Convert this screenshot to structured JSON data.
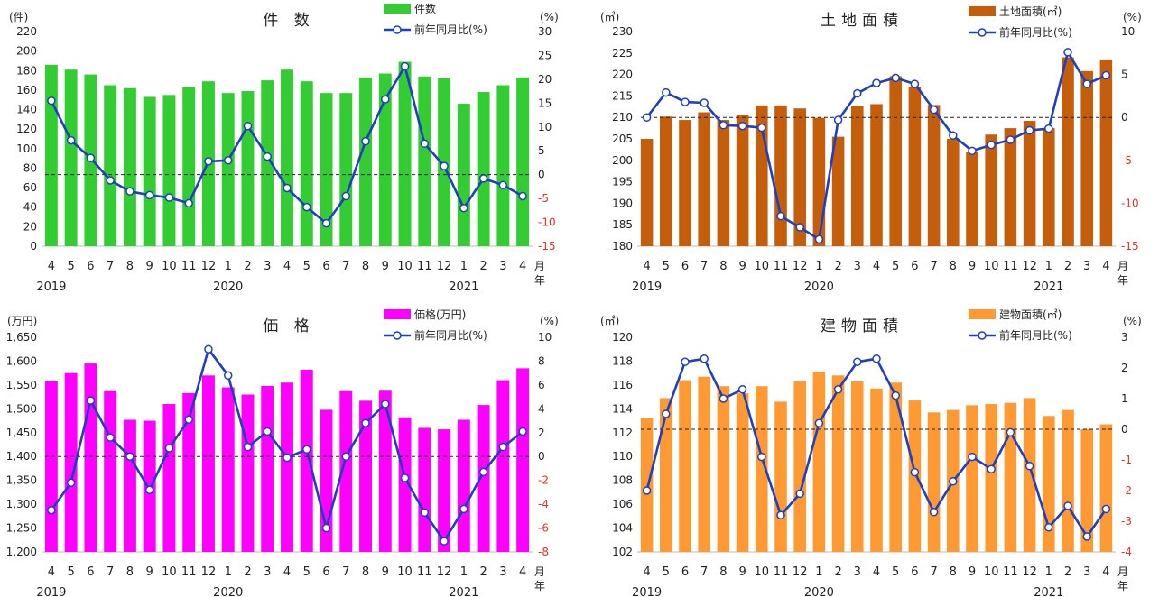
{
  "categories": [
    "4",
    "5",
    "6",
    "7",
    "8",
    "9",
    "10",
    "11",
    "12",
    "1",
    "2",
    "3",
    "4",
    "5",
    "6",
    "7",
    "8",
    "9",
    "10",
    "11",
    "12",
    "1",
    "2",
    "3",
    "4"
  ],
  "year_labels": [
    {
      "index": 0,
      "label": "2019"
    },
    {
      "index": 9,
      "label": "2020"
    },
    {
      "index": 21,
      "label": "2021"
    }
  ],
  "axis_end_label_1": "月",
  "axis_end_label_2": "年",
  "line_color": "#1f3fbf",
  "chart_data": [
    {
      "type": "bar",
      "title": "件 数",
      "y_unit": "(件)",
      "y2_unit": "(%)",
      "bar_color": "#33cc33",
      "ylim": [
        0,
        220
      ],
      "ystep": 20,
      "y2lim": [
        -15,
        30
      ],
      "y2step": 5,
      "tick_format": "plain",
      "series": [
        {
          "name": "件数",
          "axis": "left",
          "values": [
            186,
            181,
            176,
            165,
            162,
            153,
            155,
            163,
            169,
            157,
            159,
            170,
            181,
            169,
            157,
            157,
            173,
            177,
            189,
            174,
            172,
            146,
            158,
            165,
            173
          ]
        },
        {
          "name": "前年同月比(%)",
          "axis": "right",
          "values": [
            15.5,
            7.2,
            3.5,
            -1.2,
            -3.5,
            -4.3,
            -4.8,
            -6.0,
            2.8,
            3.0,
            10.2,
            3.8,
            -2.8,
            -6.8,
            -10.2,
            -4.5,
            7.0,
            15.8,
            22.7,
            6.5,
            1.8,
            -7.0,
            -0.8,
            -2.2,
            -4.5
          ]
        }
      ]
    },
    {
      "type": "bar",
      "title": "土地面積",
      "y_unit": "(㎡)",
      "y2_unit": "(%)",
      "bar_color": "#c45e0a",
      "ylim": [
        180,
        230
      ],
      "ystep": 5,
      "y2lim": [
        -15,
        10
      ],
      "y2step": 5,
      "tick_format": "plain",
      "series": [
        {
          "name": "土地面積(㎡)",
          "axis": "left",
          "values": [
            205,
            210.2,
            209.4,
            211.2,
            209.4,
            210.5,
            212.8,
            212.8,
            212.1,
            209.9,
            205.5,
            212.6,
            213.1,
            219.6,
            217.2,
            212.9,
            205.0,
            202.0,
            206.0,
            207.5,
            209.2,
            207.5,
            224.0,
            220.8,
            223.5
          ]
        },
        {
          "name": "前年同月比(%)",
          "axis": "right",
          "values": [
            0,
            2.9,
            1.8,
            1.7,
            -0.9,
            -1.0,
            -1.2,
            -11.5,
            -12.8,
            -14.2,
            -0.3,
            2.8,
            4.0,
            4.6,
            3.9,
            0.9,
            -2.1,
            -3.9,
            -3.2,
            -2.6,
            -1.5,
            -1.3,
            7.6,
            3.9,
            4.9
          ]
        }
      ]
    },
    {
      "type": "bar",
      "title": "価 格",
      "y_unit": "(万円)",
      "y2_unit": "(%)",
      "bar_color": "#ff00ff",
      "ylim": [
        1200,
        1650
      ],
      "ystep": 50,
      "y2lim": [
        -8,
        10
      ],
      "y2step": 2,
      "tick_format": "comma",
      "series": [
        {
          "name": "価格(万円)",
          "axis": "left",
          "values": [
            1558,
            1575,
            1595,
            1537,
            1477,
            1475,
            1510,
            1533,
            1570,
            1545,
            1530,
            1548,
            1555,
            1582,
            1498,
            1537,
            1517,
            1538,
            1482,
            1460,
            1457,
            1477,
            1508,
            1560,
            1585
          ]
        },
        {
          "name": "前年同月比(%)",
          "axis": "right",
          "values": [
            -4.5,
            -2.2,
            4.7,
            1.6,
            0,
            -2.8,
            0.7,
            3.1,
            9.0,
            6.8,
            0.8,
            2.1,
            -0.1,
            0.6,
            -6.0,
            0,
            2.8,
            4.4,
            -1.8,
            -4.7,
            -7.1,
            -4.4,
            -1.3,
            0.8,
            2.1
          ]
        }
      ]
    },
    {
      "type": "bar",
      "title": "建物面積",
      "y_unit": "(㎡)",
      "y2_unit": "(%)",
      "bar_color": "#ff9933",
      "ylim": [
        102,
        120
      ],
      "ystep": 2,
      "y2lim": [
        -4,
        3
      ],
      "y2step": 1,
      "tick_format": "plain",
      "series": [
        {
          "name": "建物面積(㎡)",
          "axis": "left",
          "values": [
            113.2,
            114.9,
            116.4,
            116.7,
            115.9,
            115.3,
            115.9,
            114.6,
            116.3,
            117.1,
            116.8,
            116.3,
            115.7,
            116.2,
            114.7,
            113.7,
            113.9,
            114.3,
            114.4,
            114.5,
            114.9,
            113.4,
            113.9,
            112.3,
            112.7
          ]
        },
        {
          "name": "前年同月比(%)",
          "axis": "right",
          "values": [
            -2.0,
            0.5,
            2.2,
            2.3,
            1.0,
            1.3,
            -0.9,
            -2.8,
            -2.1,
            0.2,
            1.3,
            2.2,
            2.3,
            1.1,
            -1.4,
            -2.7,
            -1.7,
            -0.9,
            -1.3,
            -0.1,
            -1.2,
            -3.2,
            -2.5,
            -3.5,
            -2.6
          ]
        }
      ]
    }
  ]
}
